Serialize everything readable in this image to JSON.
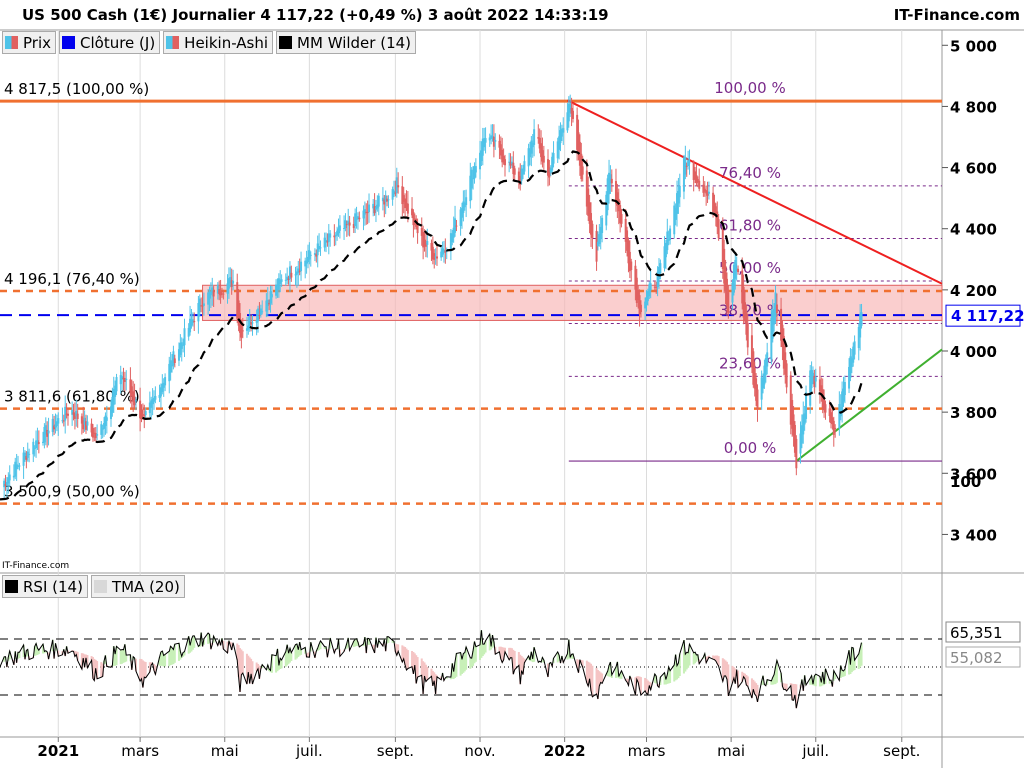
{
  "header": {
    "title": "US 500 Cash (1€) Journalier 4 117,22 (+0,49 %) 3 août 2022 14:33:19",
    "brand": "IT-Finance.com",
    "watermark": "IT-Finance.com"
  },
  "legend": [
    {
      "label": "Prix",
      "color": "#e06060"
    },
    {
      "label": "Clôture (J)",
      "color": "#0000ee"
    },
    {
      "label": "Heikin-Ashi",
      "color": "#4fc3e8"
    },
    {
      "label": "MM Wilder (14)",
      "color": "#000000"
    }
  ],
  "rsi_legend": [
    {
      "label": "RSI (14)",
      "color": "#000000"
    },
    {
      "label": "TMA (20)",
      "color": "#cccccc"
    }
  ],
  "chart_data": {
    "type": "candlestick",
    "price_axis": {
      "range": [
        3300,
        5050
      ],
      "ticks": [
        "3 400",
        "3 600",
        "3 800",
        "4 000",
        "4 200",
        "4 400",
        "4 600",
        "4 800",
        "5 000"
      ]
    },
    "x_axis": {
      "labels": [
        "2021",
        "mars",
        "mai",
        "juil.",
        "sept.",
        "nov.",
        "2022",
        "mars",
        "mai",
        "juil.",
        "sept."
      ],
      "start": "2020-11-20",
      "end": "2022-09-30"
    },
    "last_price": {
      "value": 4117.22,
      "label": "4 117,22",
      "color": "#0000ee"
    },
    "close_line": 4117.22,
    "fibonacci": {
      "major": [
        {
          "value": 4817.5,
          "label": "4 817,5 (100,00 %)",
          "color": "#f07030"
        },
        {
          "value": 4196.1,
          "label": "4 196,1 (76,40 %)",
          "color": "#f07030"
        },
        {
          "value": 3811.6,
          "label": "3 811,6 (61,80 %)",
          "color": "#f07030"
        },
        {
          "value": 3500.9,
          "label": "3 500,9 (50,00 %)",
          "color": "#f07030"
        }
      ],
      "retracements": [
        {
          "value": 4817.5,
          "label": "100,00 %"
        },
        {
          "value": 4540,
          "label": "76,40 %"
        },
        {
          "value": 4368,
          "label": "61,80 %"
        },
        {
          "value": 4229,
          "label": "50,00 %"
        },
        {
          "value": 4090,
          "label": "38,20 %"
        },
        {
          "value": 3917,
          "label": "23,60 %"
        },
        {
          "value": 3640,
          "label": "0,00 %"
        }
      ]
    },
    "zone": {
      "from": 4100,
      "to": 4215,
      "start": "2021-04-15",
      "color": "#f8b4b4"
    },
    "trendlines": [
      {
        "name": "resistance",
        "color": "#ee2020",
        "points": [
          [
            "2022-01-03",
            4820
          ],
          [
            "2022-09-30",
            4220
          ]
        ]
      },
      {
        "name": "support",
        "color": "#40b030",
        "points": [
          [
            "2022-06-17",
            3640
          ],
          [
            "2022-09-30",
            4005
          ]
        ]
      }
    ],
    "price_anchors": [
      [
        "2020-11-20",
        3555
      ],
      [
        "2020-12-15",
        3700
      ],
      [
        "2021-01-10",
        3810
      ],
      [
        "2021-01-29",
        3715
      ],
      [
        "2021-02-15",
        3930
      ],
      [
        "2021-03-04",
        3770
      ],
      [
        "2021-03-20",
        3930
      ],
      [
        "2021-04-15",
        4170
      ],
      [
        "2021-05-07",
        4230
      ],
      [
        "2021-05-12",
        4060
      ],
      [
        "2021-06-15",
        4250
      ],
      [
        "2021-07-20",
        4380
      ],
      [
        "2021-08-25",
        4500
      ],
      [
        "2021-09-02",
        4545
      ],
      [
        "2021-09-20",
        4360
      ],
      [
        "2021-09-30",
        4310
      ],
      [
        "2021-10-10",
        4360
      ],
      [
        "2021-11-05",
        4710
      ],
      [
        "2021-11-30",
        4560
      ],
      [
        "2021-12-10",
        4715
      ],
      [
        "2021-12-20",
        4570
      ],
      [
        "2022-01-04",
        4815
      ],
      [
        "2022-01-24",
        4300
      ],
      [
        "2022-02-02",
        4600
      ],
      [
        "2022-02-24",
        4140
      ],
      [
        "2022-03-10",
        4250
      ],
      [
        "2022-03-29",
        4630
      ],
      [
        "2022-04-20",
        4460
      ],
      [
        "2022-04-29",
        4130
      ],
      [
        "2022-05-04",
        4300
      ],
      [
        "2022-05-20",
        3810
      ],
      [
        "2022-06-02",
        4180
      ],
      [
        "2022-06-17",
        3640
      ],
      [
        "2022-06-27",
        3940
      ],
      [
        "2022-07-14",
        3730
      ],
      [
        "2022-08-03",
        4140
      ]
    ],
    "rsi": {
      "range": [
        0,
        100
      ],
      "ticks": [
        "100"
      ],
      "levels": [
        70,
        50,
        30
      ],
      "last_value": "65,351",
      "tma_value": "55,082",
      "anchors": [
        [
          "2020-11-20",
          55
        ],
        [
          "2020-12-15",
          62
        ],
        [
          "2021-01-10",
          63
        ],
        [
          "2021-01-29",
          45
        ],
        [
          "2021-02-15",
          64
        ],
        [
          "2021-03-04",
          40
        ],
        [
          "2021-03-20",
          60
        ],
        [
          "2021-04-15",
          71
        ],
        [
          "2021-05-07",
          64
        ],
        [
          "2021-05-12",
          38
        ],
        [
          "2021-06-15",
          62
        ],
        [
          "2021-07-20",
          64
        ],
        [
          "2021-08-25",
          66
        ],
        [
          "2021-09-02",
          64
        ],
        [
          "2021-09-20",
          38
        ],
        [
          "2021-09-30",
          36
        ],
        [
          "2021-10-10",
          48
        ],
        [
          "2021-11-05",
          73
        ],
        [
          "2021-11-30",
          44
        ],
        [
          "2021-12-10",
          62
        ],
        [
          "2021-12-20",
          45
        ],
        [
          "2022-01-04",
          65
        ],
        [
          "2022-01-24",
          30
        ],
        [
          "2022-02-02",
          52
        ],
        [
          "2022-02-24",
          33
        ],
        [
          "2022-03-10",
          42
        ],
        [
          "2022-03-29",
          64
        ],
        [
          "2022-04-20",
          50
        ],
        [
          "2022-04-29",
          36
        ],
        [
          "2022-05-04",
          43
        ],
        [
          "2022-05-20",
          32
        ],
        [
          "2022-06-02",
          50
        ],
        [
          "2022-06-17",
          27
        ],
        [
          "2022-06-27",
          45
        ],
        [
          "2022-07-14",
          42
        ],
        [
          "2022-08-03",
          66
        ]
      ]
    }
  }
}
